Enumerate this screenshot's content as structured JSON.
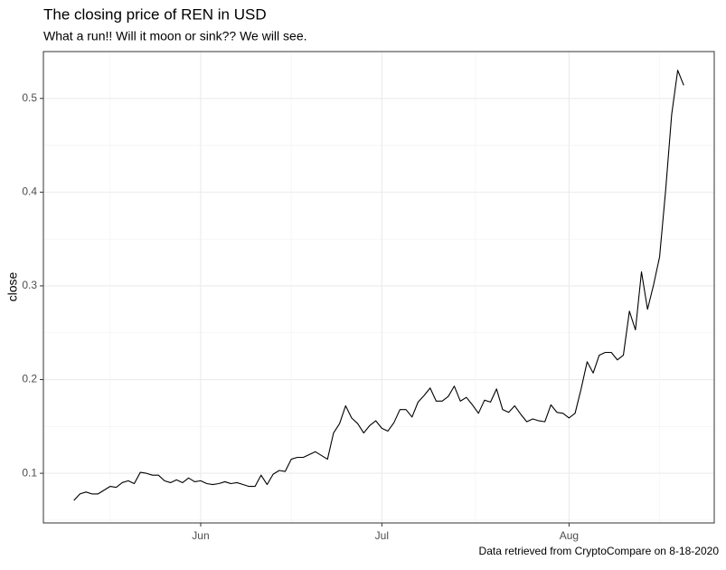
{
  "chart_data": {
    "type": "line",
    "title": "The closing price of REN in USD",
    "subtitle": "What a run!! Will it moon or sink?? We will see.",
    "y_label": "close",
    "caption": "Data retrieved from CryptoCompare on 8-18-2020",
    "categories": [
      null,
      null,
      null,
      null,
      null,
      null,
      null,
      null,
      null,
      null,
      null,
      null,
      null,
      null,
      null,
      null,
      null,
      null,
      null,
      null,
      null,
      "Jun",
      null,
      null,
      null,
      null,
      null,
      null,
      null,
      null,
      null,
      null,
      null,
      null,
      null,
      null,
      null,
      null,
      null,
      null,
      null,
      null,
      null,
      null,
      null,
      null,
      null,
      null,
      null,
      null,
      null,
      "Jul",
      null,
      null,
      null,
      null,
      null,
      null,
      null,
      null,
      null,
      null,
      null,
      null,
      null,
      null,
      null,
      null,
      null,
      null,
      null,
      null,
      null,
      null,
      null,
      null,
      null,
      null,
      null,
      null,
      null,
      null,
      "Aug",
      null,
      null,
      null,
      null,
      null,
      null,
      null,
      null,
      null,
      null,
      null,
      null,
      null,
      null,
      null,
      null,
      null,
      null,
      null
    ],
    "values": [
      0.071,
      0.078,
      0.08,
      0.078,
      0.078,
      0.082,
      0.086,
      0.085,
      0.09,
      0.092,
      0.089,
      0.101,
      0.1,
      0.098,
      0.098,
      0.092,
      0.09,
      0.093,
      0.09,
      0.095,
      0.091,
      0.092,
      0.089,
      0.088,
      0.089,
      0.091,
      0.089,
      0.09,
      0.088,
      0.086,
      0.086,
      0.098,
      0.088,
      0.099,
      0.103,
      0.102,
      0.115,
      0.117,
      0.117,
      0.12,
      0.123,
      0.119,
      0.115,
      0.143,
      0.153,
      0.172,
      0.159,
      0.153,
      0.143,
      0.151,
      0.156,
      0.148,
      0.145,
      0.154,
      0.168,
      0.168,
      0.16,
      0.176,
      0.183,
      0.191,
      0.177,
      0.177,
      0.182,
      0.193,
      0.177,
      0.181,
      0.173,
      0.164,
      0.178,
      0.176,
      0.19,
      0.168,
      0.165,
      0.172,
      0.163,
      0.155,
      0.158,
      0.156,
      0.155,
      0.173,
      0.165,
      0.164,
      0.159,
      0.164,
      0.19,
      0.219,
      0.207,
      0.226,
      0.229,
      0.229,
      0.221,
      0.226,
      0.273,
      0.253,
      0.315,
      0.275,
      0.301,
      0.331,
      0.402,
      0.483,
      0.53,
      0.514
    ],
    "color": "#000000",
    "ylim": [
      0.047,
      0.55
    ],
    "yticks": [
      0.1,
      0.2,
      0.3,
      0.4,
      0.5
    ],
    "grid": true
  }
}
